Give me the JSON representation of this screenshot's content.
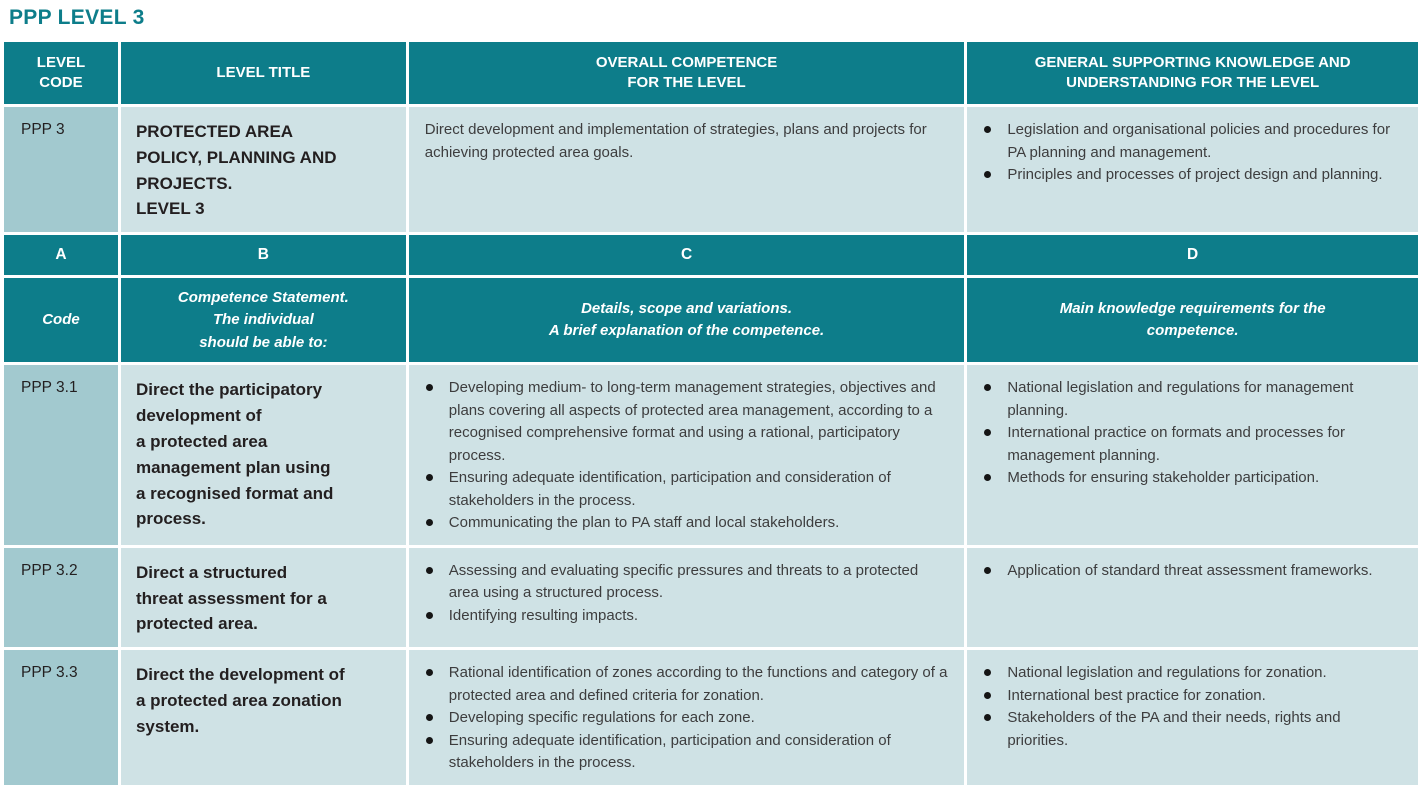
{
  "title": "PPP LEVEL 3",
  "colors": {
    "header_teal": "#0d7d8a",
    "code_cell_teal": "#a2c9cf",
    "content_cell_teal": "#cfe2e5",
    "title_text_teal": "#0d7d8a"
  },
  "table": {
    "header": {
      "level_code": "LEVEL\nCODE",
      "level_title": "LEVEL TITLE",
      "overall_competence": "OVERALL COMPETENCE\nFOR THE LEVEL",
      "general_knowledge": "GENERAL SUPPORTING KNOWLEDGE AND\nUNDERSTANDING FOR THE LEVEL"
    },
    "level_row": {
      "code": "PPP 3",
      "title": "PROTECTED AREA\nPOLICY, PLANNING AND\nPROJECTS.\nLEVEL 3",
      "overall_competence": "Direct development and implementation of strategies, plans and projects for achieving protected area goals.",
      "knowledge": [
        "Legislation and organisational policies and procedures for PA planning and management.",
        "Principles and processes of project design and planning."
      ]
    },
    "column_letters": {
      "a": "A",
      "b": "B",
      "c": "C",
      "d": "D"
    },
    "sub_header": {
      "code": "Code",
      "statement": "Competence Statement.\nThe individual\nshould be able to:",
      "details": "Details, scope and variations.\nA brief explanation of the competence.",
      "knowledge": "Main knowledge requirements for the\ncompetence."
    },
    "rows": [
      {
        "code": "PPP 3.1",
        "statement": "Direct the participatory\ndevelopment of\na protected area\nmanagement plan using\na recognised format and\nprocess.",
        "details": [
          "Developing medium- to long-term management strategies, objectives and plans covering all aspects of protected area management, according to a recognised comprehensive format and using a rational, participatory process.",
          "Ensuring adequate identification, participation and consideration of stakeholders in the process.",
          "Communicating the plan to PA staff and local stakeholders."
        ],
        "knowledge": [
          "National legislation and regulations for management planning.",
          "International practice on formats and processes for management planning.",
          "Methods for ensuring stakeholder participation."
        ]
      },
      {
        "code": "PPP 3.2",
        "statement": "Direct a structured\nthreat assessment for a\nprotected area.",
        "details": [
          "Assessing and evaluating specific pressures and threats to a protected area using a structured process.",
          "Identifying resulting impacts."
        ],
        "knowledge": [
          "Application of standard threat assessment frameworks."
        ]
      },
      {
        "code": "PPP 3.3",
        "statement": "Direct the development of\na protected area zonation\nsystem.",
        "details": [
          "Rational identification of zones according to the functions and category of a protected area and defined criteria for zonation.",
          "Developing specific regulations for each zone.",
          "Ensuring adequate identification, participation and consideration of stakeholders in the process."
        ],
        "knowledge": [
          "National legislation and regulations for zonation.",
          "International best practice for zonation.",
          "Stakeholders of the PA and their needs, rights and priorities."
        ]
      }
    ]
  }
}
